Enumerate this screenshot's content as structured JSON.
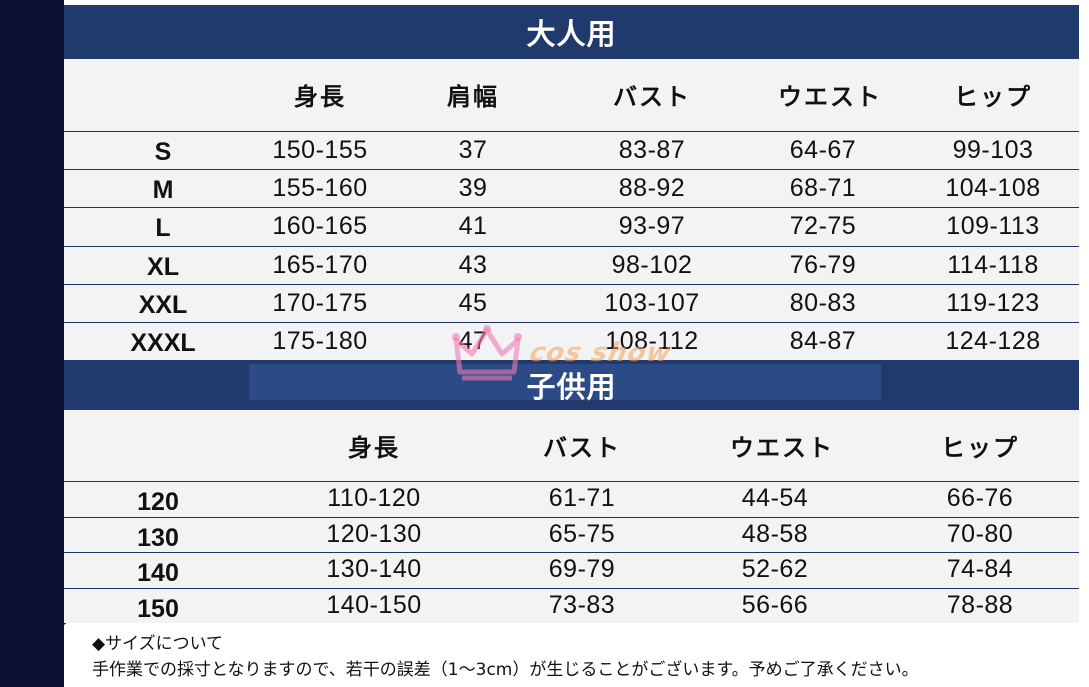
{
  "adult": {
    "title": "大人用",
    "headers": [
      "身長",
      "肩幅",
      "バスト",
      "ウエスト",
      "ヒップ"
    ],
    "rows": [
      {
        "size": "S",
        "values": [
          "150-155",
          "37",
          "83-87",
          "64-67",
          "99-103"
        ]
      },
      {
        "size": "M",
        "values": [
          "155-160",
          "39",
          "88-92",
          "68-71",
          "104-108"
        ]
      },
      {
        "size": "L",
        "values": [
          "160-165",
          "41",
          "93-97",
          "72-75",
          "109-113"
        ]
      },
      {
        "size": "XL",
        "values": [
          "165-170",
          "43",
          "98-102",
          "76-79",
          "114-118"
        ]
      },
      {
        "size": "XXL",
        "values": [
          "170-175",
          "45",
          "103-107",
          "80-83",
          "119-123"
        ]
      },
      {
        "size": "XXXL",
        "values": [
          "175-180",
          "47",
          "108-112",
          "84-87",
          "124-128"
        ]
      }
    ]
  },
  "child": {
    "title": "子供用",
    "headers": [
      "身長",
      "バスト",
      "ウエスト",
      "ヒップ"
    ],
    "rows": [
      {
        "size": "120",
        "values": [
          "110-120",
          "61-71",
          "44-54",
          "66-76"
        ]
      },
      {
        "size": "130",
        "values": [
          "120-130",
          "65-75",
          "48-58",
          "70-80"
        ]
      },
      {
        "size": "140",
        "values": [
          "130-140",
          "69-79",
          "52-62",
          "74-84"
        ]
      },
      {
        "size": "150",
        "values": [
          "140-150",
          "73-83",
          "56-66",
          "78-88"
        ]
      }
    ]
  },
  "notes": {
    "heading": "◆サイズについて",
    "body": "手作業での採寸となりますので、若干の誤差（1～3cm）が生じることがございます。予めご了承ください。"
  },
  "watermark": {
    "text": "cos show"
  },
  "colors": {
    "header_bar": "#213a6e",
    "side_panel": "#0d0f33",
    "table_bg": "#f3f3f3",
    "row_line": "#1f3566",
    "watermark_pink": "#f07ab0",
    "watermark_orange": "#f0a05a"
  }
}
